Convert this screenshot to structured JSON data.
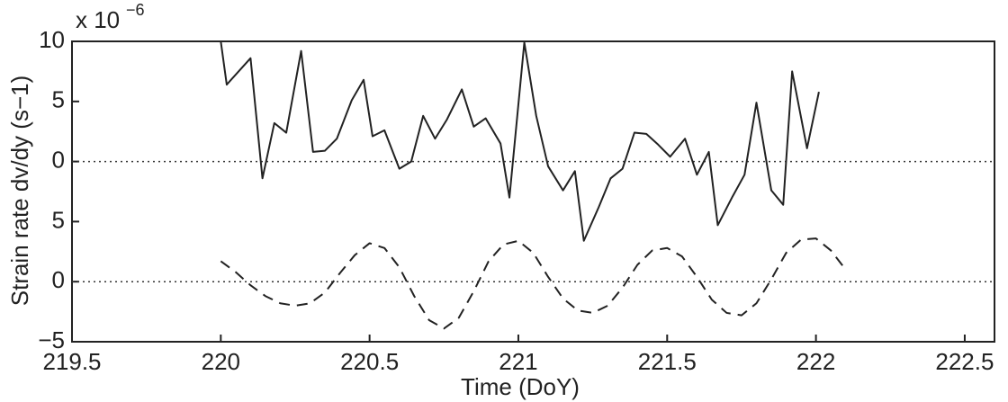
{
  "chart_data": {
    "type": "line",
    "y_multiplier": "x 10",
    "y_exponent": "−6",
    "ylabel": "Strain rate dv/dy (s−1)",
    "xlabel": "Time (DoY)",
    "xlim": [
      219.5,
      222.6
    ],
    "xticks": [
      219.5,
      220,
      220.5,
      221,
      221.5,
      222,
      222.5
    ],
    "ylim": [
      -15,
      10
    ],
    "yticks": [
      10,
      5,
      0,
      {
        "value": -5,
        "label": "5"
      },
      {
        "value": -10,
        "label": "0"
      },
      {
        "value": -15,
        "label": "−5"
      }
    ],
    "reference_lines": [
      0,
      -10
    ],
    "series": [
      {
        "color": "#222222",
        "dashed": false,
        "x": [
          220,
          220.02,
          220.1,
          220.14,
          220.18,
          220.22,
          220.27,
          220.31,
          220.35,
          220.39,
          220.44,
          220.48,
          220.51,
          220.55,
          220.6,
          220.64,
          220.68,
          220.72,
          220.76,
          220.81,
          220.85,
          220.89,
          220.94,
          220.97,
          221.02,
          221.06,
          221.1,
          221.15,
          221.19,
          221.22,
          221.27,
          221.31,
          221.35,
          221.39,
          221.43,
          221.47,
          221.51,
          221.56,
          221.6,
          221.64,
          221.67,
          221.72,
          221.76,
          221.8,
          221.85,
          221.89,
          221.92,
          221.97,
          222.01
        ],
        "values": [
          10,
          6.4,
          8.6,
          -1.4,
          3.2,
          2.4,
          9.2,
          0.8,
          0.9,
          1.9,
          5.1,
          6.8,
          2.1,
          2.6,
          -0.6,
          0,
          3.8,
          1.9,
          3.5,
          6.0,
          2.9,
          3.6,
          1.5,
          -3.0,
          9.9,
          3.8,
          -0.4,
          -2.4,
          -0.8,
          -6.6,
          -3.8,
          -1.4,
          -0.6,
          2.4,
          2.3,
          1.4,
          0.4,
          1.9,
          -1.1,
          0.8,
          -5.3,
          -2.9,
          -1.1,
          4.9,
          -2.4,
          -3.6,
          7.5,
          1.1,
          5.8
        ]
      },
      {
        "color": "#222222",
        "dashed": true,
        "x": [
          220,
          220.05,
          220.1,
          220.15,
          220.2,
          220.25,
          220.3,
          220.35,
          220.4,
          220.45,
          220.5,
          220.55,
          220.6,
          220.65,
          220.7,
          220.75,
          220.8,
          220.85,
          220.9,
          220.95,
          221,
          221.05,
          221.1,
          221.15,
          221.2,
          221.25,
          221.3,
          221.35,
          221.4,
          221.45,
          221.5,
          221.55,
          221.6,
          221.65,
          221.7,
          221.75,
          221.8,
          221.85,
          221.9,
          221.95,
          222,
          222.05,
          222.1
        ],
        "values": [
          -8.3,
          -9.2,
          -10.3,
          -11.2,
          -11.8,
          -12.0,
          -11.8,
          -10.9,
          -9.3,
          -7.8,
          -6.8,
          -7.2,
          -8.8,
          -11.2,
          -13.2,
          -13.9,
          -13.0,
          -10.8,
          -8.3,
          -6.9,
          -6.6,
          -7.6,
          -9.6,
          -11.4,
          -12.4,
          -12.6,
          -12.0,
          -10.5,
          -8.6,
          -7.4,
          -7.2,
          -7.9,
          -9.6,
          -11.5,
          -12.6,
          -12.8,
          -11.8,
          -9.8,
          -7.6,
          -6.5,
          -6.4,
          -7.4,
          -9.0
        ]
      }
    ]
  }
}
